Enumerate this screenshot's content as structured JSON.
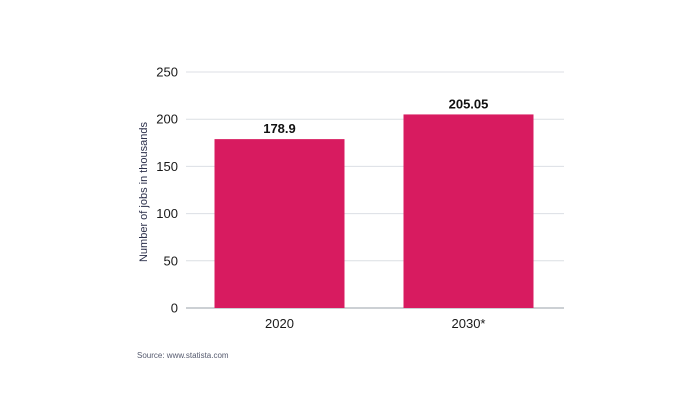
{
  "chart_data": {
    "type": "bar",
    "categories": [
      "2020",
      "2030*"
    ],
    "values": [
      178.9,
      205.05
    ],
    "value_labels": [
      "178.9",
      "205.05"
    ],
    "title": "",
    "xlabel": "",
    "ylabel": "Number of jobs in thousands",
    "ylim": [
      0,
      250
    ],
    "yticks": [
      0,
      50,
      100,
      150,
      200,
      250
    ],
    "grid": true,
    "bar_color": "#d81b60"
  },
  "source": "Source: www.statista.com"
}
